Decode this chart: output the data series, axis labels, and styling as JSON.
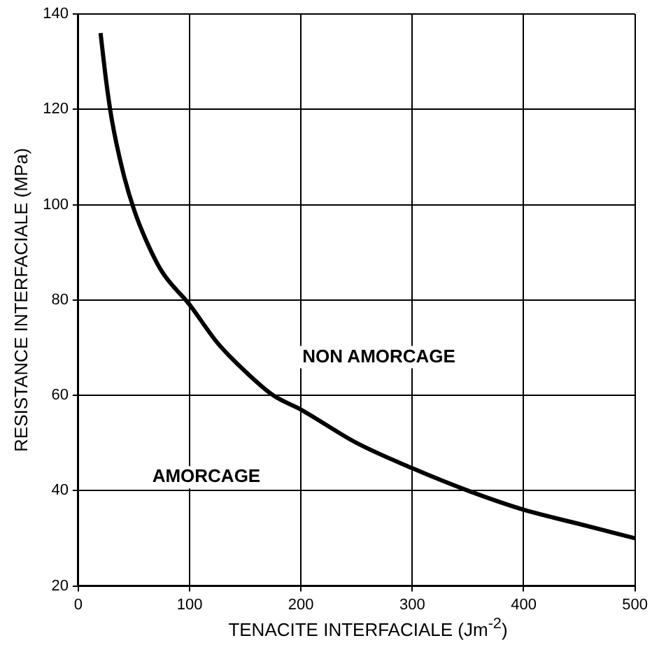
{
  "chart_data": {
    "type": "line",
    "xlabel": "TENACITE INTERFACIALE (Jm$^{-2}$)",
    "ylabel": "RESISTANCE INTERFACIALE (MPa)",
    "x": [
      20,
      25,
      30,
      40,
      50,
      60,
      75,
      100,
      125,
      150,
      175,
      200,
      250,
      300,
      350,
      400,
      450,
      500
    ],
    "series": [
      {
        "color": "#000000",
        "values": [
          136,
          126,
          118,
          107,
          99,
          93,
          86,
          79,
          71,
          65,
          60,
          57,
          50,
          44.7,
          40,
          36,
          33,
          30
        ]
      }
    ],
    "xlim": [
      0,
      500
    ],
    "xticks": [
      0,
      100,
      200,
      300,
      400,
      500
    ],
    "ylim": [
      20,
      140
    ],
    "yticks": [
      20,
      40,
      60,
      80,
      100,
      120,
      140
    ],
    "grid": true,
    "marker": "none",
    "line_style": "solid",
    "annotations": [
      "NON AMORCAGE",
      "AMORCAGE"
    ]
  }
}
